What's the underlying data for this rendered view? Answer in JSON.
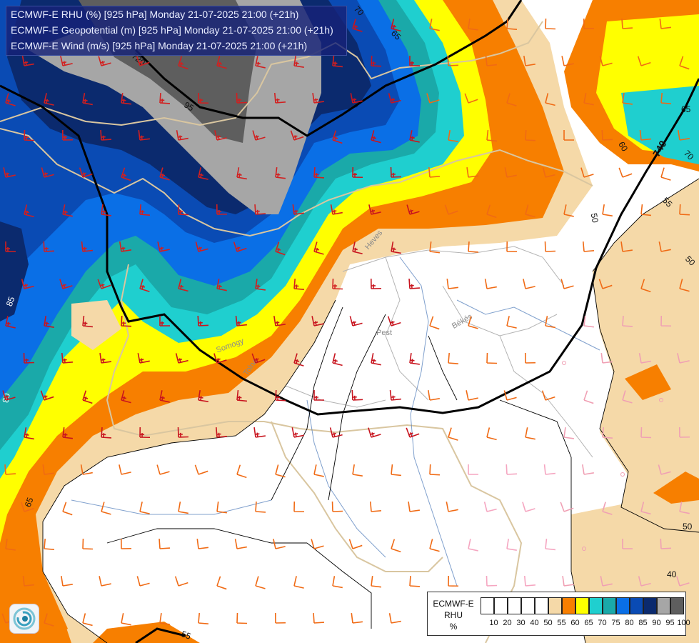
{
  "header": {
    "line1": "ECMWF-E RHU (%) [925 hPa] Monday 21-07-2025 21:00 (+21h)",
    "line2": "ECMWF-E Geopotential (m) [925 hPa] Monday 21-07-2025 21:00 (+21h)",
    "line3": "ECMWF-E Wind (m/s) [925 hPa] Monday 21-07-2025 21:00 (+21h)"
  },
  "legend": {
    "title_line1": "ECMWF-E",
    "title_line2": "RHU",
    "title_line3": "%",
    "ticks": [
      "10",
      "20",
      "30",
      "40",
      "50",
      "55",
      "60",
      "65",
      "70",
      "75",
      "80",
      "85",
      "90",
      "95",
      "100"
    ],
    "colors": [
      "#ffffff",
      "#ffffff",
      "#ffffff",
      "#ffffff",
      "#ffffff",
      "#f5d9a8",
      "#f77f00",
      "#ffff00",
      "#1fcfcf",
      "#1aa9a9",
      "#0a6fe6",
      "#0a4bb4",
      "#0b2a6e",
      "#a6a6a6",
      "#5e5e5e"
    ]
  },
  "contour_labels": {
    "rh_70_top": "70",
    "rh_65_top": "65",
    "rh_95": "95",
    "rh_60_right": "60",
    "rh_65_right": "65",
    "rh_70_right": "70",
    "rh_55_right": "55",
    "rh_50_right1": "50",
    "rh_50_right2": "50",
    "rh_50_right3": "50",
    "rh_40_right": "40",
    "rh_55_bottom": "55",
    "rh_85_left": "85",
    "rh_80_left": "80",
    "rh_65_left": "65",
    "gph_740": "740",
    "gph_720": "720"
  },
  "place_labels": {
    "somogy": "Somogy",
    "tolna": "Tolna",
    "pest": "Pest",
    "bekes": "Békés",
    "heves": "Heves"
  },
  "logo": {
    "icon": "app-logo-icon"
  }
}
